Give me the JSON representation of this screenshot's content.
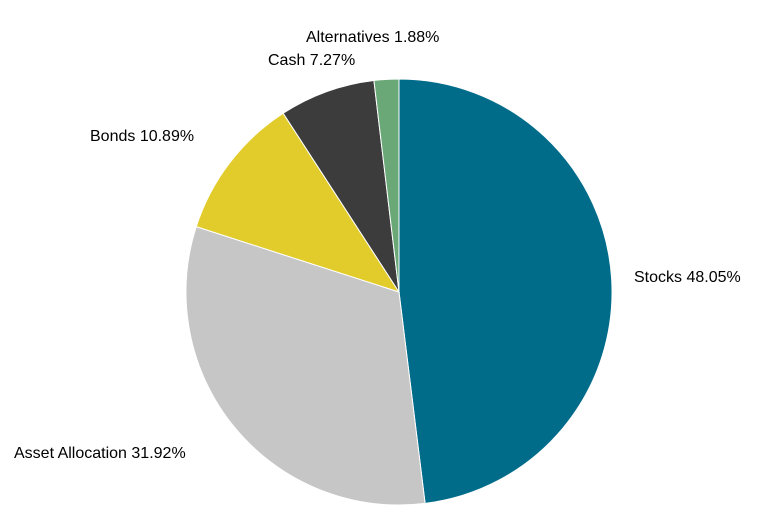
{
  "chart_data": {
    "type": "pie",
    "title": "",
    "start_angle_deg": 0,
    "direction": "clockwise",
    "slices": [
      {
        "label": "Stocks 48.05%",
        "name": "Stocks",
        "value": 48.05,
        "color": "#006C8A"
      },
      {
        "label": "Asset Allocation 31.92%",
        "name": "Asset Allocation",
        "value": 31.92,
        "color": "#C6C6C6"
      },
      {
        "label": "Bonds 10.89%",
        "name": "Bonds",
        "value": 10.89,
        "color": "#E2CC2C"
      },
      {
        "label": "Cash 7.27%",
        "name": "Cash",
        "value": 7.27,
        "color": "#3C3C3C"
      },
      {
        "label": "Alternatives 1.88%",
        "name": "Alternatives",
        "value": 1.88,
        "color": "#6BA878"
      }
    ],
    "legend": "none",
    "labels": "outside"
  }
}
